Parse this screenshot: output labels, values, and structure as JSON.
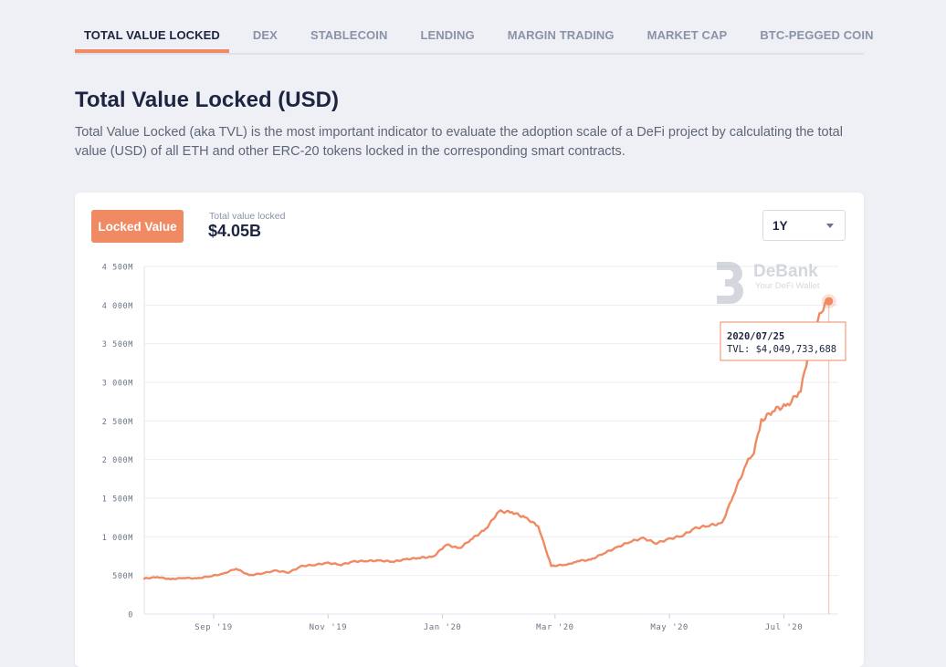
{
  "tabs": [
    {
      "label": "TOTAL VALUE LOCKED",
      "active": true
    },
    {
      "label": "DEX"
    },
    {
      "label": "STABLECOIN"
    },
    {
      "label": "LENDING"
    },
    {
      "label": "MARGIN TRADING"
    },
    {
      "label": "MARKET CAP"
    },
    {
      "label": "BTC-PEGGED COIN"
    }
  ],
  "page": {
    "title": "Total Value Locked (USD)",
    "description": "Total Value Locked (aka TVL) is the most important indicator to evaluate the adoption scale of a DeFi project by calculating the total value (USD) of all ETH and other ERC-20 tokens locked in the corresponding smart contracts."
  },
  "card": {
    "locked_button": "Locked Value",
    "tvl_label": "Total value locked",
    "tvl_value": "$4.05B",
    "range_selected": "1Y"
  },
  "watermark": {
    "name": "DeBank",
    "tagline": "Your DeFi Wallet",
    "icon": "debank-logo-icon"
  },
  "tooltip": {
    "date": "2020/07/25",
    "line": "TVL: $4,049,733,688"
  },
  "colors": {
    "accent": "#ef8a63",
    "text": "#1d2540",
    "muted": "#8a93a6",
    "grid": "#e8ebf1"
  },
  "chart_data": {
    "type": "line",
    "series": [
      {
        "x": [
          "2019-07-26",
          "2019-08-02",
          "2019-08-09",
          "2019-08-16",
          "2019-08-23",
          "2019-08-30",
          "2019-09-06",
          "2019-09-13",
          "2019-09-20",
          "2019-09-27",
          "2019-10-04",
          "2019-10-11",
          "2019-10-18",
          "2019-10-25",
          "2019-11-01",
          "2019-11-08",
          "2019-11-15",
          "2019-11-22",
          "2019-11-29",
          "2019-12-06",
          "2019-12-13",
          "2019-12-20",
          "2019-12-27",
          "2020-01-03",
          "2020-01-10",
          "2020-01-17",
          "2020-01-24",
          "2020-01-31",
          "2020-02-07",
          "2020-02-14",
          "2020-02-21",
          "2020-02-28",
          "2020-03-06",
          "2020-03-10",
          "2020-03-13",
          "2020-03-20",
          "2020-03-27",
          "2020-04-03",
          "2020-04-10",
          "2020-04-17",
          "2020-04-24",
          "2020-05-01",
          "2020-05-08",
          "2020-05-15",
          "2020-05-22",
          "2020-05-29",
          "2020-06-05",
          "2020-06-12",
          "2020-06-15",
          "2020-06-19",
          "2020-06-26",
          "2020-07-03",
          "2020-07-10",
          "2020-07-17",
          "2020-07-22",
          "2020-07-25"
        ],
        "y": [
          460,
          480,
          450,
          470,
          460,
          490,
          520,
          590,
          500,
          530,
          560,
          540,
          620,
          640,
          660,
          640,
          680,
          690,
          690,
          680,
          710,
          730,
          740,
          900,
          850,
          980,
          1100,
          1330,
          1320,
          1250,
          1140,
          620,
          640,
          650,
          690,
          700,
          790,
          860,
          940,
          980,
          920,
          970,
          1020,
          1110,
          1150,
          1170,
          1600,
          1990,
          2100,
          2500,
          2650,
          2700,
          2900,
          3700,
          3950,
          4050
        ]
      }
    ],
    "x_ticks": [
      "Sep '19",
      "Nov '19",
      "Jan '20",
      "Mar '20",
      "May '20",
      "Jul '20"
    ],
    "y_ticks": [
      "0",
      "500M",
      "1 000M",
      "1 500M",
      "2 000M",
      "2 500M",
      "3 000M",
      "3 500M",
      "4 000M",
      "4 500M"
    ],
    "ylim": [
      0,
      4500
    ],
    "xlim": [
      "2019-07-26",
      "2020-07-30"
    ],
    "y_unit": "M USD",
    "grid": true
  }
}
